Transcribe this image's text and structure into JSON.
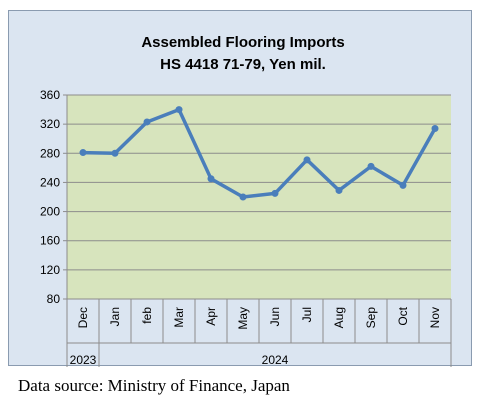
{
  "chart_data": {
    "type": "line",
    "title_line1": "Assembled Flooring Imports",
    "title_line2": "HS 4418 71-79, Yen mil.",
    "categories": [
      "Dec",
      "Jan",
      "feb",
      "Mar",
      "Apr",
      "May",
      "Jun",
      "Jul",
      "Aug",
      "Sep",
      "Oct",
      "Nov"
    ],
    "year_groups": [
      {
        "label": "2023",
        "start": 0,
        "end": 0
      },
      {
        "label": "2024",
        "start": 1,
        "end": 11
      }
    ],
    "series": [
      {
        "values": [
          281,
          280,
          323,
          340,
          245,
          220,
          225,
          271,
          229,
          262,
          236,
          314
        ]
      }
    ],
    "ylim": [
      80,
      360
    ],
    "yticks": [
      80,
      120,
      160,
      200,
      240,
      280,
      320,
      360
    ],
    "grid": true,
    "colors": {
      "line": "#4a7ebb",
      "plot_bg": "#d7e4bd",
      "frame_bg": "#dbe5f1"
    }
  },
  "source_note": "Data source: Ministry of Finance, Japan"
}
